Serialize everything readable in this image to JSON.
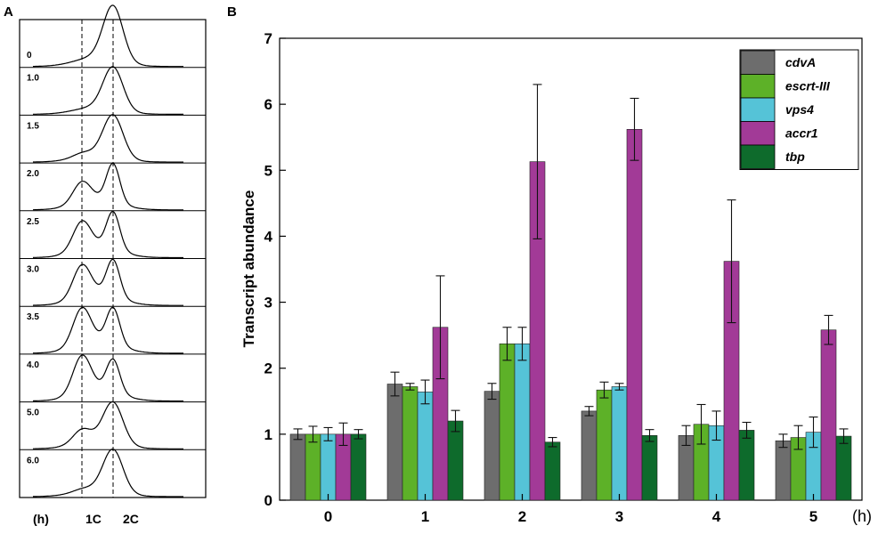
{
  "panels": {
    "a_label": "A",
    "b_label": "B"
  },
  "colors": {
    "cdvA": "#6d6d6d",
    "escrt-III": "#5db128",
    "vps4": "#55c3d7",
    "accr1": "#a23a97",
    "tbp": "#0e6b2c"
  },
  "chart_data": [
    {
      "type": "line",
      "panel": "A",
      "time_labels": [
        "0",
        "1.0",
        "1.5",
        "2.0",
        "2.5",
        "3.0",
        "3.5",
        "4.0",
        "5.0",
        "6.0"
      ],
      "x_labels": [
        "(h)",
        "1C",
        "2C"
      ],
      "profiles": [
        {
          "time": "0",
          "peak_1C": 0.0,
          "peak_2C": 1.0
        },
        {
          "time": "1.0",
          "peak_1C": 0.0,
          "peak_2C": 1.0
        },
        {
          "time": "1.5",
          "peak_1C": 0.08,
          "peak_2C": 1.0
        },
        {
          "time": "2.0",
          "peak_1C": 0.45,
          "peak_2C": 0.85
        },
        {
          "time": "2.5",
          "peak_1C": 0.6,
          "peak_2C": 0.8
        },
        {
          "time": "3.0",
          "peak_1C": 0.62,
          "peak_2C": 0.72
        },
        {
          "time": "3.5",
          "peak_1C": 0.62,
          "peak_2C": 0.62
        },
        {
          "time": "4.0",
          "peak_1C": 0.65,
          "peak_2C": 0.58
        },
        {
          "time": "5.0",
          "peak_1C": 0.3,
          "peak_2C": 0.95
        },
        {
          "time": "6.0",
          "peak_1C": 0.05,
          "peak_2C": 1.0
        }
      ]
    },
    {
      "type": "bar",
      "panel": "B",
      "categories": [
        "0",
        "1",
        "2",
        "3",
        "4",
        "5"
      ],
      "xunit": "(h)",
      "ylabel": "Transcript abundance",
      "ylim": [
        0,
        7
      ],
      "yticks": [
        "0",
        "1",
        "2",
        "3",
        "4",
        "5",
        "6",
        "7"
      ],
      "legend_position": "top-right",
      "series": [
        {
          "name": "cdvA",
          "values": [
            1.0,
            1.76,
            1.65,
            1.35,
            0.98,
            0.9
          ],
          "errors": [
            0.08,
            0.18,
            0.12,
            0.07,
            0.15,
            0.1
          ]
        },
        {
          "name": "escrt-III",
          "values": [
            1.0,
            1.72,
            2.37,
            1.67,
            1.15,
            0.95
          ],
          "errors": [
            0.12,
            0.05,
            0.25,
            0.12,
            0.3,
            0.18
          ]
        },
        {
          "name": "vps4",
          "values": [
            1.0,
            1.64,
            2.37,
            1.72,
            1.13,
            1.03
          ],
          "errors": [
            0.1,
            0.18,
            0.25,
            0.05,
            0.22,
            0.23
          ]
        },
        {
          "name": "accr1",
          "values": [
            1.0,
            2.62,
            5.13,
            5.62,
            3.62,
            2.58
          ],
          "errors": [
            0.17,
            0.78,
            1.17,
            0.47,
            0.93,
            0.22
          ]
        },
        {
          "name": "tbp",
          "values": [
            1.0,
            1.2,
            0.88,
            0.98,
            1.06,
            0.97
          ],
          "errors": [
            0.07,
            0.16,
            0.07,
            0.09,
            0.12,
            0.11
          ]
        }
      ]
    }
  ]
}
